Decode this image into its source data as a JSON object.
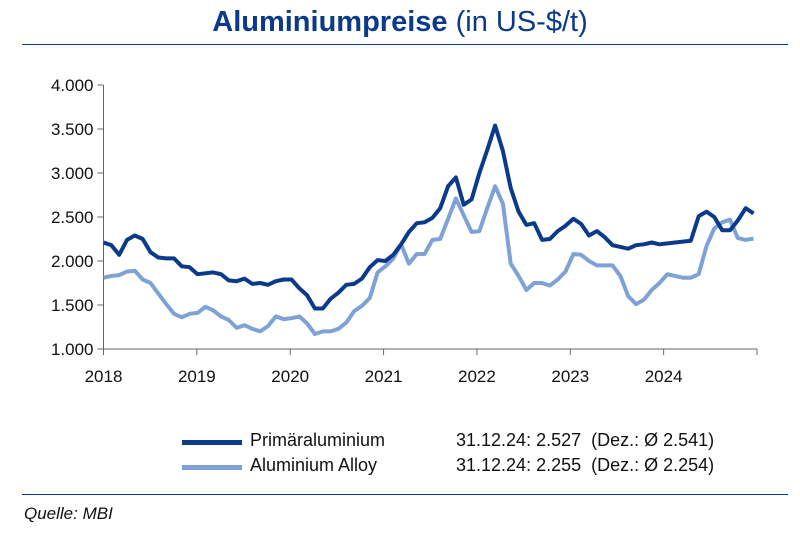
{
  "chart_data": {
    "type": "line",
    "title": "Aluminiumpreise",
    "subtitle": "(in US-$/t)",
    "xlabel": "",
    "ylabel": "",
    "x_ticks": [
      "2018",
      "2019",
      "2020",
      "2021",
      "2022",
      "2023",
      "2024"
    ],
    "y_ticks": [
      "1.000",
      "1.500",
      "2.000",
      "2.500",
      "3.000",
      "3.500",
      "4.000"
    ],
    "ylim": [
      1000,
      4000
    ],
    "xlim": [
      "2018-01",
      "2024-12"
    ],
    "x_frequency": "monthly",
    "grid": false,
    "legend_position": "bottom",
    "series": [
      {
        "name": "Primäraluminium",
        "color": "#0b3a8a",
        "annotation": "31.12.24: 2.527  (Dez.: Ø 2.541)",
        "values": [
          2210,
          2180,
          2070,
          2240,
          2290,
          2250,
          2100,
          2040,
          2030,
          2030,
          1940,
          1930,
          1850,
          1860,
          1870,
          1850,
          1780,
          1770,
          1800,
          1740,
          1750,
          1730,
          1770,
          1790,
          1790,
          1690,
          1610,
          1460,
          1460,
          1570,
          1640,
          1730,
          1740,
          1800,
          1930,
          2010,
          2000,
          2070,
          2190,
          2330,
          2430,
          2440,
          2490,
          2600,
          2850,
          2950,
          2640,
          2700,
          3000,
          3260,
          3540,
          3250,
          2830,
          2560,
          2410,
          2430,
          2240,
          2250,
          2340,
          2400,
          2480,
          2420,
          2290,
          2340,
          2270,
          2180,
          2160,
          2140,
          2180,
          2190,
          2210,
          2190,
          2200,
          2210,
          2220,
          2230,
          2510,
          2560,
          2500,
          2350,
          2350,
          2460,
          2600,
          2541
        ]
      },
      {
        "name": "Aluminium Alloy",
        "color": "#7fa2d6",
        "annotation": "31.12.24: 2.255  (Dez.: Ø 2.254)",
        "values": [
          1810,
          1830,
          1840,
          1880,
          1890,
          1790,
          1750,
          1630,
          1510,
          1400,
          1360,
          1400,
          1410,
          1480,
          1440,
          1370,
          1330,
          1240,
          1270,
          1230,
          1200,
          1260,
          1370,
          1340,
          1350,
          1370,
          1290,
          1170,
          1200,
          1200,
          1230,
          1300,
          1430,
          1490,
          1580,
          1870,
          1940,
          2030,
          2190,
          1970,
          2080,
          2080,
          2240,
          2250,
          2480,
          2710,
          2520,
          2330,
          2340,
          2600,
          2850,
          2650,
          1970,
          1830,
          1670,
          1750,
          1750,
          1720,
          1790,
          1880,
          2080,
          2070,
          2000,
          1950,
          1950,
          1950,
          1830,
          1600,
          1510,
          1560,
          1670,
          1750,
          1850,
          1830,
          1810,
          1810,
          1850,
          2170,
          2370,
          2440,
          2470,
          2260,
          2240,
          2254
        ]
      }
    ]
  },
  "source": "Quelle: MBI"
}
